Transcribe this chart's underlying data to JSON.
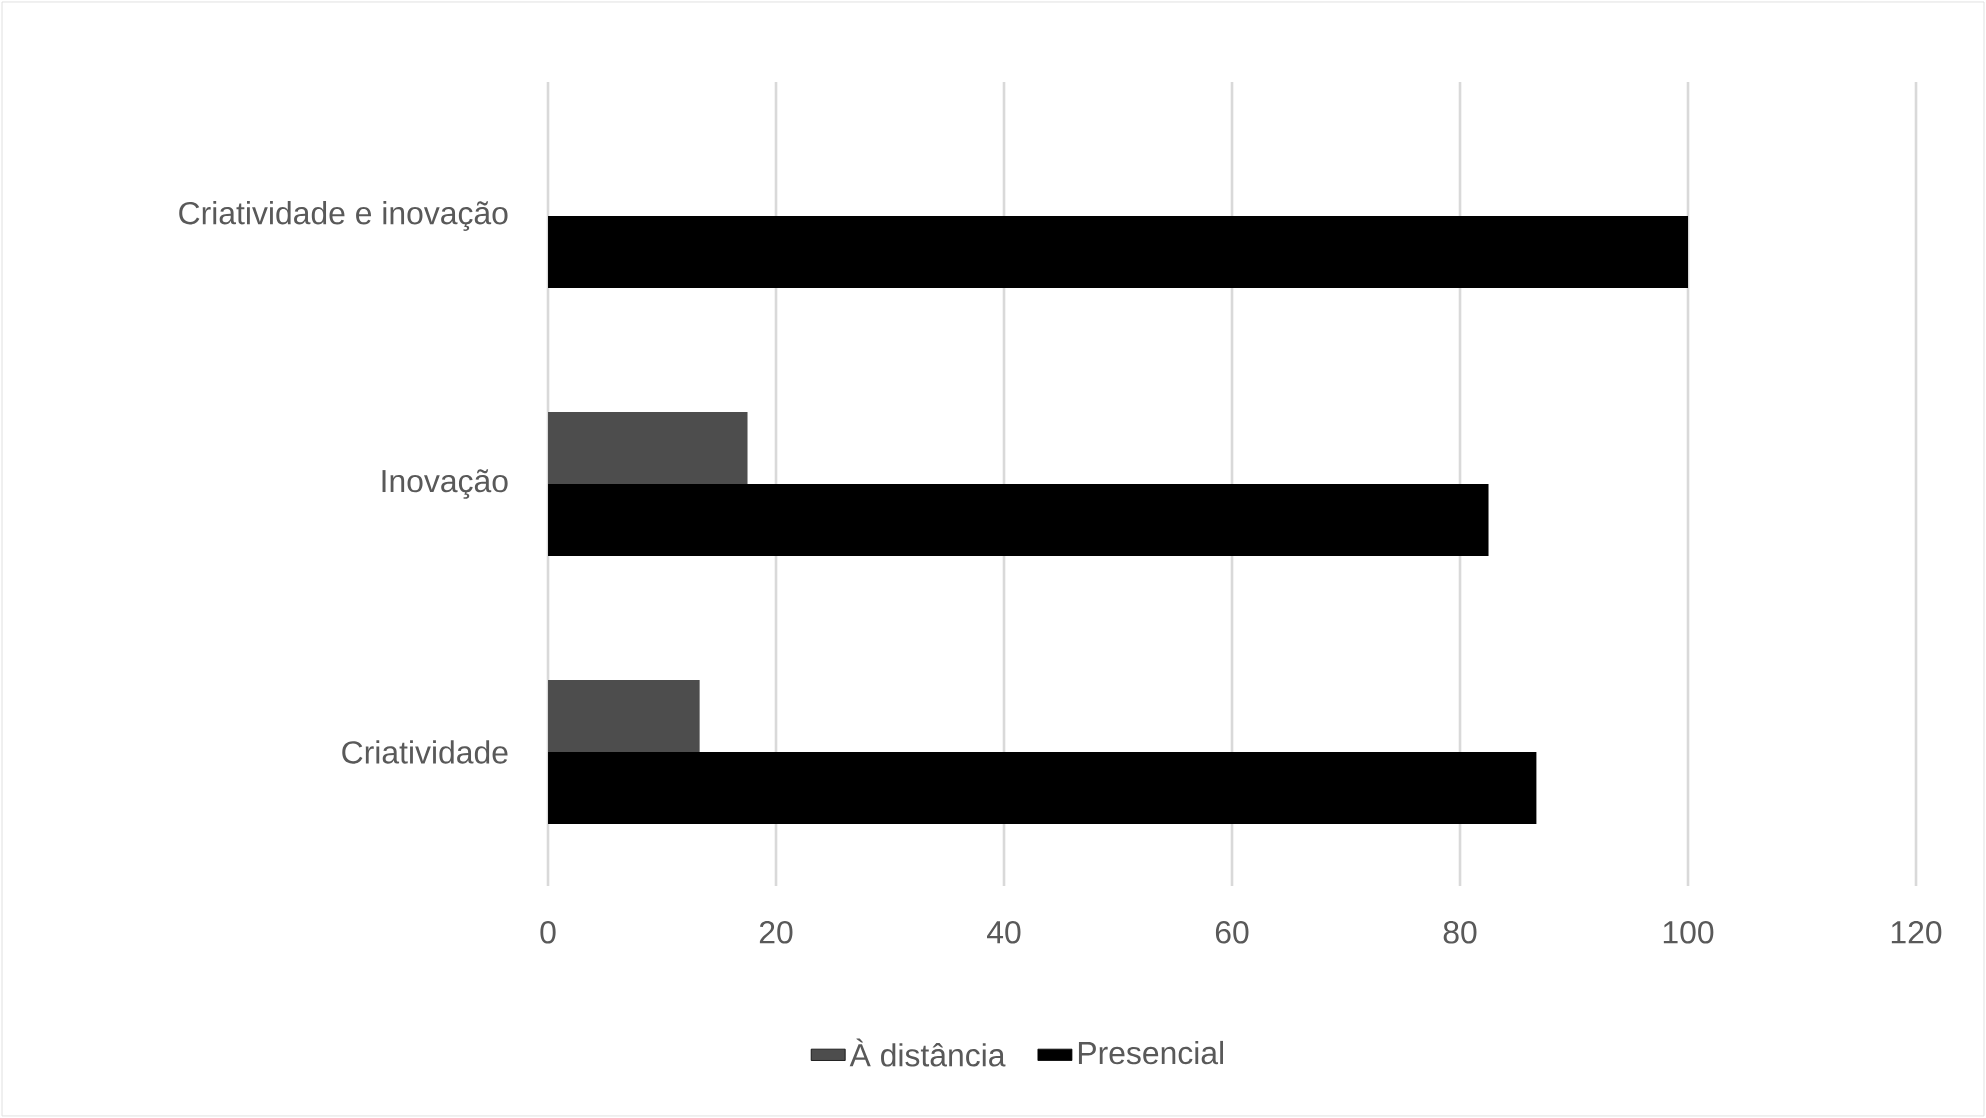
{
  "chart_data": {
    "type": "bar",
    "orientation": "horizontal",
    "categories": [
      "Criatividade e inovação",
      "Inovação",
      "Criatividade"
    ],
    "series": [
      {
        "name": "À distância",
        "color": "#4d4d4d",
        "values": [
          0,
          17.5,
          13.3
        ]
      },
      {
        "name": "Presencial",
        "color": "#000000",
        "values": [
          100,
          82.5,
          86.7
        ]
      }
    ],
    "xlim": [
      0,
      120
    ],
    "xticks": [
      0,
      20,
      40,
      60,
      80,
      100,
      120
    ],
    "grid": "x",
    "legend": "bottom"
  }
}
